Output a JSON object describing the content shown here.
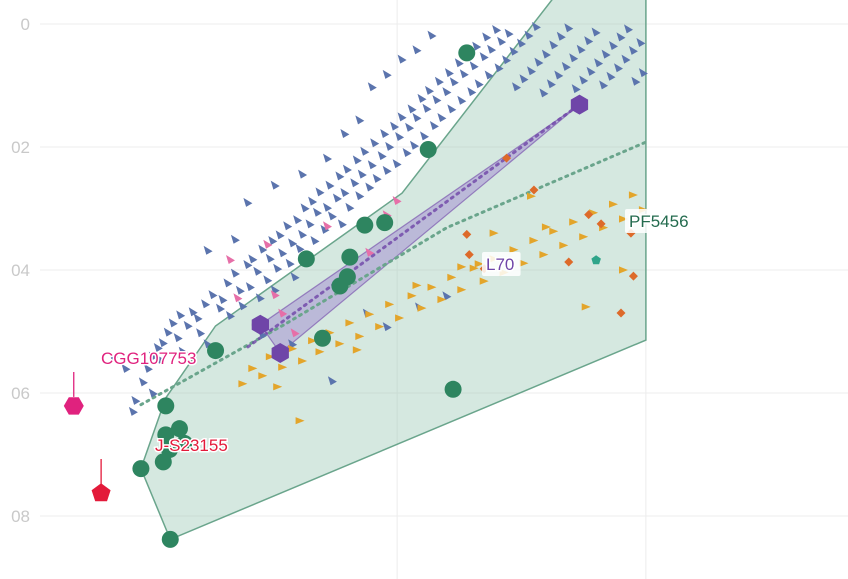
{
  "chart_data": {
    "type": "scatter",
    "title": "",
    "xlabel": "",
    "ylabel": "",
    "x_range": [
      -0.03,
      0.25
    ],
    "y_range": [
      0.0,
      0.087
    ],
    "y_reversed": true,
    "grid": true,
    "y_ticks": [
      {
        "value": 0.0,
        "label": "0"
      },
      {
        "value": 0.02,
        "label": "02"
      },
      {
        "value": 0.04,
        "label": "04"
      },
      {
        "value": 0.06,
        "label": "06"
      },
      {
        "value": 0.08,
        "label": "08"
      }
    ],
    "x_grid": [
      0.15,
      0.25
    ],
    "colors": {
      "blue": "#5b74ad",
      "green": "#2e8560",
      "purple": "#6f45a8",
      "orange": "#dd6a2a",
      "gold": "#e3a52b",
      "pink": "#e66fa8",
      "magenta": "#e0227e",
      "red": "#e31a3a",
      "hull_fill": "#9cc8b6",
      "hull_stroke": "#6aa58c",
      "purple_fill": "#a591d2"
    },
    "labels": {
      "cgg": "CGG107753",
      "js": "J-S23155",
      "l70": "L70",
      "pf": "PF5456"
    },
    "hull_green": [
      [
        0.047,
        0.0723
      ],
      [
        0.0588,
        0.0838
      ],
      [
        0.25,
        0.0514
      ],
      [
        0.25,
        -0.005
      ],
      [
        0.2143,
        -0.005
      ],
      [
        0.152,
        0.0275
      ],
      [
        0.077,
        0.0491
      ],
      [
        0.057,
        0.0608
      ]
    ],
    "hull_purple": [
      [
        0.095,
        0.0489
      ],
      [
        0.103,
        0.0535
      ],
      [
        0.2233,
        0.0131
      ]
    ],
    "dotted_green": [
      [
        0.047,
        0.0619
      ],
      [
        0.105,
        0.0488
      ],
      [
        0.17,
        0.0331
      ],
      [
        0.25,
        0.0192
      ]
    ],
    "dotted_purple": [
      [
        0.09,
        0.0525
      ],
      [
        0.2233,
        0.0131
      ]
    ],
    "green_points": [
      [
        0.047,
        0.0723
      ],
      [
        0.0588,
        0.0838
      ],
      [
        0.057,
        0.0621
      ],
      [
        0.057,
        0.0668
      ],
      [
        0.0585,
        0.0692
      ],
      [
        0.0625,
        0.0658
      ],
      [
        0.0645,
        0.0682
      ],
      [
        0.056,
        0.0712
      ],
      [
        0.077,
        0.0531
      ],
      [
        0.095,
        0.0489
      ],
      [
        0.1135,
        0.0382
      ],
      [
        0.127,
        0.0426
      ],
      [
        0.13,
        0.0411
      ],
      [
        0.131,
        0.0379
      ],
      [
        0.137,
        0.0327
      ],
      [
        0.145,
        0.0323
      ],
      [
        0.1625,
        0.0204
      ],
      [
        0.178,
        0.0047
      ],
      [
        0.1725,
        0.0594
      ],
      [
        0.12,
        0.0511
      ]
    ],
    "purple_points": [
      [
        0.095,
        0.0489
      ],
      [
        0.103,
        0.0535
      ],
      [
        0.2233,
        0.0131
      ]
    ],
    "teal_points": [
      [
        0.23,
        0.0384
      ]
    ],
    "special_points": [
      {
        "name": "CGG107753",
        "x": 0.02,
        "y": 0.0621,
        "color": "magenta"
      },
      {
        "name": "J-S23155",
        "x": 0.031,
        "y": 0.0763,
        "color": "red"
      }
    ],
    "blue_points": [
      [
        0.044,
        0.063
      ],
      [
        0.045,
        0.0612
      ],
      [
        0.048,
        0.0582
      ],
      [
        0.05,
        0.056
      ],
      [
        0.052,
        0.054
      ],
      [
        0.054,
        0.0526
      ],
      [
        0.055,
        0.0545
      ],
      [
        0.056,
        0.0518
      ],
      [
        0.058,
        0.0501
      ],
      [
        0.06,
        0.0486
      ],
      [
        0.062,
        0.051
      ],
      [
        0.063,
        0.0473
      ],
      [
        0.064,
        0.0532
      ],
      [
        0.066,
        0.049
      ],
      [
        0.068,
        0.0468
      ],
      [
        0.07,
        0.0478
      ],
      [
        0.071,
        0.0502
      ],
      [
        0.073,
        0.0455
      ],
      [
        0.074,
        0.052
      ],
      [
        0.076,
        0.044
      ],
      [
        0.079,
        0.0462
      ],
      [
        0.08,
        0.0448
      ],
      [
        0.082,
        0.0421
      ],
      [
        0.083,
        0.0474
      ],
      [
        0.085,
        0.0405
      ],
      [
        0.087,
        0.0433
      ],
      [
        0.088,
        0.0458
      ],
      [
        0.09,
        0.0391
      ],
      [
        0.091,
        0.0427
      ],
      [
        0.092,
        0.0382
      ],
      [
        0.094,
        0.0402
      ],
      [
        0.095,
        0.0445
      ],
      [
        0.096,
        0.0366
      ],
      [
        0.098,
        0.0416
      ],
      [
        0.099,
        0.0381
      ],
      [
        0.1,
        0.0352
      ],
      [
        0.101,
        0.0432
      ],
      [
        0.102,
        0.0397
      ],
      [
        0.103,
        0.0343
      ],
      [
        0.104,
        0.0372
      ],
      [
        0.106,
        0.0328
      ],
      [
        0.107,
        0.0389
      ],
      [
        0.108,
        0.0356
      ],
      [
        0.109,
        0.0411
      ],
      [
        0.11,
        0.0318
      ],
      [
        0.111,
        0.0365
      ],
      [
        0.112,
        0.0342
      ],
      [
        0.113,
        0.0299
      ],
      [
        0.115,
        0.0325
      ],
      [
        0.116,
        0.0288
      ],
      [
        0.117,
        0.0352
      ],
      [
        0.118,
        0.0306
      ],
      [
        0.119,
        0.0273
      ],
      [
        0.121,
        0.0334
      ],
      [
        0.122,
        0.0298
      ],
      [
        0.123,
        0.0262
      ],
      [
        0.124,
        0.0312
      ],
      [
        0.126,
        0.0283
      ],
      [
        0.127,
        0.0247
      ],
      [
        0.128,
        0.0325
      ],
      [
        0.129,
        0.0274
      ],
      [
        0.13,
        0.0236
      ],
      [
        0.131,
        0.0298
      ],
      [
        0.133,
        0.0258
      ],
      [
        0.134,
        0.0221
      ],
      [
        0.135,
        0.0279
      ],
      [
        0.136,
        0.0244
      ],
      [
        0.137,
        0.0207
      ],
      [
        0.139,
        0.0265
      ],
      [
        0.14,
        0.0229
      ],
      [
        0.141,
        0.0193
      ],
      [
        0.142,
        0.0251
      ],
      [
        0.144,
        0.0214
      ],
      [
        0.145,
        0.0178
      ],
      [
        0.146,
        0.0238
      ],
      [
        0.147,
        0.0199
      ],
      [
        0.149,
        0.0166
      ],
      [
        0.15,
        0.0227
      ],
      [
        0.151,
        0.0183
      ],
      [
        0.152,
        0.0151
      ],
      [
        0.154,
        0.0209
      ],
      [
        0.155,
        0.0168
      ],
      [
        0.156,
        0.0138
      ],
      [
        0.157,
        0.0197
      ],
      [
        0.158,
        0.0152
      ],
      [
        0.16,
        0.0121
      ],
      [
        0.161,
        0.0182
      ],
      [
        0.162,
        0.0137
      ],
      [
        0.163,
        0.0108
      ],
      [
        0.165,
        0.0165
      ],
      [
        0.166,
        0.0123
      ],
      [
        0.167,
        0.0093
      ],
      [
        0.168,
        0.0152
      ],
      [
        0.17,
        0.011
      ],
      [
        0.171,
        0.0079
      ],
      [
        0.172,
        0.0138
      ],
      [
        0.173,
        0.0094
      ],
      [
        0.175,
        0.0063
      ],
      [
        0.176,
        0.0124
      ],
      [
        0.177,
        0.0081
      ],
      [
        0.178,
        0.0049
      ],
      [
        0.18,
        0.011
      ],
      [
        0.181,
        0.0068
      ],
      [
        0.182,
        0.0036
      ],
      [
        0.183,
        0.0097
      ],
      [
        0.185,
        0.0053
      ],
      [
        0.186,
        0.0021
      ],
      [
        0.187,
        0.0083
      ],
      [
        0.188,
        0.0041
      ],
      [
        0.19,
        0.0009
      ],
      [
        0.191,
        0.0071
      ],
      [
        0.192,
        0.0028
      ],
      [
        0.194,
        0.0058
      ],
      [
        0.195,
        0.0015
      ],
      [
        0.197,
        0.0044
      ],
      [
        0.198,
        0.0102
      ],
      [
        0.2,
        0.0031
      ],
      [
        0.201,
        0.0089
      ],
      [
        0.203,
        0.0018
      ],
      [
        0.204,
        0.0076
      ],
      [
        0.206,
        0.0004
      ],
      [
        0.207,
        0.0062
      ],
      [
        0.209,
        0.0112
      ],
      [
        0.21,
        0.0049
      ],
      [
        0.212,
        0.0097
      ],
      [
        0.213,
        0.0034
      ],
      [
        0.215,
        0.0083
      ],
      [
        0.216,
        0.002
      ],
      [
        0.218,
        0.0069
      ],
      [
        0.219,
        0.0006
      ],
      [
        0.221,
        0.0055
      ],
      [
        0.222,
        0.0105
      ],
      [
        0.224,
        0.0041
      ],
      [
        0.225,
        0.0091
      ],
      [
        0.227,
        0.0027
      ],
      [
        0.228,
        0.0077
      ],
      [
        0.23,
        0.0013
      ],
      [
        0.231,
        0.0063
      ],
      [
        0.233,
        0.0099
      ],
      [
        0.234,
        0.0049
      ],
      [
        0.236,
        0.0085
      ],
      [
        0.237,
        0.0035
      ],
      [
        0.239,
        0.0071
      ],
      [
        0.24,
        0.0021
      ],
      [
        0.242,
        0.0057
      ],
      [
        0.243,
        0.0008
      ],
      [
        0.245,
        0.0043
      ],
      [
        0.246,
        0.0093
      ],
      [
        0.248,
        0.003
      ],
      [
        0.249,
        0.0079
      ],
      [
        0.074,
        0.0368
      ],
      [
        0.085,
        0.035
      ],
      [
        0.096,
        0.0505
      ],
      [
        0.108,
        0.052
      ],
      [
        0.119,
        0.0512
      ],
      [
        0.124,
        0.058
      ],
      [
        0.138,
        0.047
      ],
      [
        0.146,
        0.0492
      ],
      [
        0.159,
        0.046
      ],
      [
        0.17,
        0.0442
      ],
      [
        0.036,
        0.054
      ],
      [
        0.041,
        0.056
      ],
      [
        0.052,
        0.06
      ],
      [
        0.09,
        0.029
      ],
      [
        0.101,
        0.0262
      ],
      [
        0.112,
        0.0244
      ],
      [
        0.122,
        0.0218
      ],
      [
        0.14,
        0.0102
      ],
      [
        0.146,
        0.0082
      ],
      [
        0.152,
        0.0057
      ],
      [
        0.158,
        0.0042
      ],
      [
        0.135,
        0.0156
      ],
      [
        0.129,
        0.0178
      ],
      [
        0.164,
        0.0018
      ]
    ],
    "gold_points": [
      [
        0.088,
        0.0585
      ],
      [
        0.092,
        0.056
      ],
      [
        0.096,
        0.0572
      ],
      [
        0.099,
        0.0541
      ],
      [
        0.104,
        0.0558
      ],
      [
        0.108,
        0.0528
      ],
      [
        0.112,
        0.0548
      ],
      [
        0.116,
        0.0515
      ],
      [
        0.119,
        0.0533
      ],
      [
        0.123,
        0.0502
      ],
      [
        0.127,
        0.052
      ],
      [
        0.131,
        0.0486
      ],
      [
        0.135,
        0.0508
      ],
      [
        0.139,
        0.0472
      ],
      [
        0.143,
        0.0492
      ],
      [
        0.147,
        0.0456
      ],
      [
        0.151,
        0.0478
      ],
      [
        0.156,
        0.0442
      ],
      [
        0.16,
        0.0462
      ],
      [
        0.164,
        0.0428
      ],
      [
        0.168,
        0.0448
      ],
      [
        0.172,
        0.0412
      ],
      [
        0.176,
        0.0432
      ],
      [
        0.181,
        0.0397
      ],
      [
        0.185,
        0.0418
      ],
      [
        0.189,
        0.0382
      ],
      [
        0.193,
        0.0404
      ],
      [
        0.197,
        0.0367
      ],
      [
        0.201,
        0.0389
      ],
      [
        0.205,
        0.0352
      ],
      [
        0.209,
        0.0375
      ],
      [
        0.213,
        0.0337
      ],
      [
        0.217,
        0.036
      ],
      [
        0.221,
        0.0322
      ],
      [
        0.225,
        0.0346
      ],
      [
        0.229,
        0.0307
      ],
      [
        0.233,
        0.0331
      ],
      [
        0.237,
        0.0293
      ],
      [
        0.241,
        0.0317
      ],
      [
        0.245,
        0.0278
      ],
      [
        0.249,
        0.0302
      ],
      [
        0.102,
        0.059
      ],
      [
        0.111,
        0.0645
      ],
      [
        0.134,
        0.053
      ],
      [
        0.158,
        0.0425
      ],
      [
        0.176,
        0.0395
      ],
      [
        0.189,
        0.034
      ],
      [
        0.204,
        0.028
      ],
      [
        0.226,
        0.046
      ],
      [
        0.241,
        0.04
      ],
      [
        0.183,
        0.039
      ],
      [
        0.21,
        0.033
      ]
    ],
    "orange_points": [
      [
        0.178,
        0.0342
      ],
      [
        0.179,
        0.0375
      ],
      [
        0.185,
        0.0398
      ],
      [
        0.194,
        0.0218
      ],
      [
        0.205,
        0.027
      ],
      [
        0.219,
        0.0387
      ],
      [
        0.227,
        0.031
      ],
      [
        0.232,
        0.0325
      ],
      [
        0.24,
        0.047
      ],
      [
        0.245,
        0.041
      ],
      [
        0.244,
        0.034
      ]
    ],
    "pink_points": [
      [
        0.083,
        0.0383
      ],
      [
        0.086,
        0.0445
      ],
      [
        0.098,
        0.0358
      ],
      [
        0.101,
        0.044
      ],
      [
        0.104,
        0.047
      ],
      [
        0.109,
        0.0502
      ],
      [
        0.122,
        0.0328
      ],
      [
        0.139,
        0.0371
      ],
      [
        0.146,
        0.031
      ],
      [
        0.15,
        0.0287
      ]
    ]
  }
}
